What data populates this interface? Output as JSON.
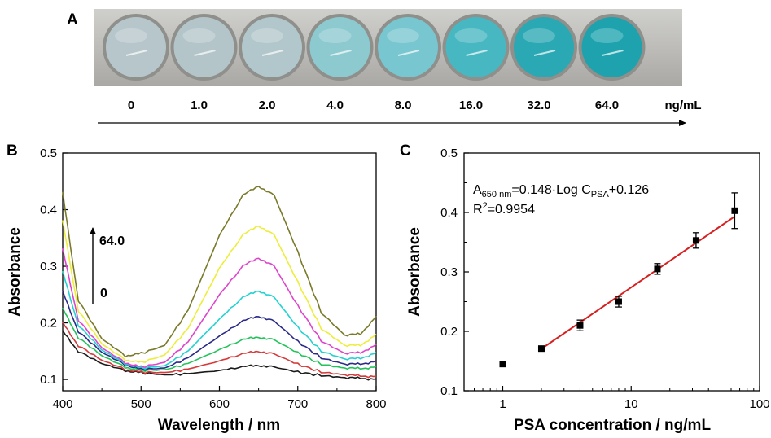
{
  "panel_a": {
    "label": "A",
    "concentrations": [
      "0",
      "1.0",
      "2.0",
      "4.0",
      "8.0",
      "16.0",
      "32.0",
      "64.0"
    ],
    "unit": "ng/mL",
    "well_colors": [
      "#b7c6cb",
      "#b4c5ca",
      "#b2c7cb",
      "#8ccad0",
      "#78c6cf",
      "#47b7c1",
      "#2aa8b3",
      "#1ea3ae"
    ]
  },
  "chart_data": [
    {
      "panel": "B",
      "type": "line",
      "xlabel": "Wavelength / nm",
      "ylabel": "Absorbance",
      "xlim": [
        400,
        800
      ],
      "ylim": [
        0.08,
        0.5
      ],
      "xticks": [
        400,
        500,
        600,
        700,
        800
      ],
      "yticks": [
        0.1,
        0.2,
        0.3,
        0.4,
        0.5
      ],
      "annotation_top": "64.0",
      "annotation_bottom": "0",
      "grid": false,
      "series": [
        {
          "color": "#1a1a1a",
          "values": [
            [
              400,
              0.185
            ],
            [
              420,
              0.15
            ],
            [
              450,
              0.128
            ],
            [
              480,
              0.116
            ],
            [
              500,
              0.112
            ],
            [
              530,
              0.108
            ],
            [
              560,
              0.11
            ],
            [
              600,
              0.116
            ],
            [
              630,
              0.122
            ],
            [
              650,
              0.125
            ],
            [
              670,
              0.122
            ],
            [
              700,
              0.113
            ],
            [
              730,
              0.107
            ],
            [
              760,
              0.103
            ],
            [
              780,
              0.102
            ],
            [
              800,
              0.101
            ]
          ]
        },
        {
          "color": "#d63a3a",
          "values": [
            [
              400,
              0.2
            ],
            [
              420,
              0.16
            ],
            [
              450,
              0.134
            ],
            [
              480,
              0.118
            ],
            [
              500,
              0.113
            ],
            [
              530,
              0.112
            ],
            [
              560,
              0.118
            ],
            [
              600,
              0.133
            ],
            [
              630,
              0.145
            ],
            [
              650,
              0.15
            ],
            [
              670,
              0.145
            ],
            [
              700,
              0.127
            ],
            [
              730,
              0.113
            ],
            [
              760,
              0.108
            ],
            [
              780,
              0.106
            ],
            [
              800,
              0.106
            ]
          ]
        },
        {
          "color": "#22c35a",
          "values": [
            [
              400,
              0.225
            ],
            [
              420,
              0.174
            ],
            [
              450,
              0.142
            ],
            [
              480,
              0.122
            ],
            [
              500,
              0.116
            ],
            [
              530,
              0.117
            ],
            [
              560,
              0.128
            ],
            [
              600,
              0.153
            ],
            [
              630,
              0.17
            ],
            [
              650,
              0.175
            ],
            [
              670,
              0.17
            ],
            [
              700,
              0.147
            ],
            [
              730,
              0.127
            ],
            [
              760,
              0.12
            ],
            [
              780,
              0.119
            ],
            [
              800,
              0.123
            ]
          ]
        },
        {
          "color": "#2a2a88",
          "values": [
            [
              400,
              0.255
            ],
            [
              420,
              0.185
            ],
            [
              450,
              0.148
            ],
            [
              480,
              0.126
            ],
            [
              500,
              0.118
            ],
            [
              530,
              0.12
            ],
            [
              560,
              0.138
            ],
            [
              600,
              0.177
            ],
            [
              630,
              0.203
            ],
            [
              650,
              0.212
            ],
            [
              670,
              0.203
            ],
            [
              700,
              0.167
            ],
            [
              730,
              0.138
            ],
            [
              760,
              0.127
            ],
            [
              780,
              0.127
            ],
            [
              800,
              0.133
            ]
          ]
        },
        {
          "color": "#22d2d2",
          "values": [
            [
              400,
              0.29
            ],
            [
              420,
              0.196
            ],
            [
              450,
              0.152
            ],
            [
              480,
              0.128
            ],
            [
              500,
              0.12
            ],
            [
              530,
              0.124
            ],
            [
              560,
              0.15
            ],
            [
              600,
              0.207
            ],
            [
              630,
              0.245
            ],
            [
              650,
              0.257
            ],
            [
              670,
              0.245
            ],
            [
              700,
              0.192
            ],
            [
              730,
              0.15
            ],
            [
              760,
              0.136
            ],
            [
              780,
              0.137
            ],
            [
              800,
              0.148
            ]
          ]
        },
        {
          "color": "#dd44cc",
          "values": [
            [
              400,
              0.33
            ],
            [
              420,
              0.205
            ],
            [
              450,
              0.156
            ],
            [
              480,
              0.13
            ],
            [
              500,
              0.122
            ],
            [
              530,
              0.13
            ],
            [
              560,
              0.166
            ],
            [
              600,
              0.25
            ],
            [
              630,
              0.3
            ],
            [
              650,
              0.315
            ],
            [
              670,
              0.3
            ],
            [
              700,
              0.23
            ],
            [
              730,
              0.168
            ],
            [
              760,
              0.146
            ],
            [
              780,
              0.147
            ],
            [
              800,
              0.162
            ]
          ]
        },
        {
          "color": "#eded3a",
          "values": [
            [
              400,
              0.38
            ],
            [
              420,
              0.222
            ],
            [
              450,
              0.163
            ],
            [
              480,
              0.135
            ],
            [
              500,
              0.13
            ],
            [
              530,
              0.143
            ],
            [
              560,
              0.19
            ],
            [
              600,
              0.297
            ],
            [
              630,
              0.355
            ],
            [
              650,
              0.372
            ],
            [
              670,
              0.355
            ],
            [
              700,
              0.272
            ],
            [
              730,
              0.19
            ],
            [
              760,
              0.16
            ],
            [
              780,
              0.16
            ],
            [
              800,
              0.18
            ]
          ]
        },
        {
          "color": "#7a7a2a",
          "values": [
            [
              400,
              0.43
            ],
            [
              420,
              0.24
            ],
            [
              450,
              0.172
            ],
            [
              480,
              0.142
            ],
            [
              500,
              0.146
            ],
            [
              530,
              0.16
            ],
            [
              560,
              0.222
            ],
            [
              600,
              0.355
            ],
            [
              630,
              0.425
            ],
            [
              650,
              0.442
            ],
            [
              670,
              0.425
            ],
            [
              700,
              0.325
            ],
            [
              730,
              0.218
            ],
            [
              760,
              0.178
            ],
            [
              780,
              0.18
            ],
            [
              800,
              0.212
            ]
          ]
        }
      ]
    },
    {
      "panel": "C",
      "type": "scatter",
      "xlabel": "PSA concentration / ng/mL",
      "ylabel": "Absorbance",
      "xscale": "log",
      "xlim": [
        0.5,
        100
      ],
      "ylim": [
        0.1,
        0.5
      ],
      "xticks": [
        1,
        10,
        100
      ],
      "yticks": [
        0.1,
        0.2,
        0.3,
        0.4,
        0.5
      ],
      "grid": false,
      "points": [
        {
          "x": 1,
          "y": 0.145,
          "err": 0.004
        },
        {
          "x": 2,
          "y": 0.171,
          "err": 0.003
        },
        {
          "x": 4,
          "y": 0.21,
          "err": 0.009
        },
        {
          "x": 8,
          "y": 0.25,
          "err": 0.009
        },
        {
          "x": 16,
          "y": 0.305,
          "err": 0.009
        },
        {
          "x": 32,
          "y": 0.353,
          "err": 0.013
        },
        {
          "x": 64,
          "y": 0.403,
          "err": 0.03
        }
      ],
      "fit": {
        "slope": 0.148,
        "intercept": 0.126,
        "x_range": [
          2,
          64
        ],
        "color": "#d62020"
      },
      "equation": {
        "a": "A",
        "a_sub": "650 nm",
        "mid": "=0.148·Log C",
        "c_sub": "PSA",
        "tail": "+0.126"
      },
      "r2": {
        "base": "R",
        "sup": "2",
        "tail": "=0.9954"
      }
    }
  ]
}
